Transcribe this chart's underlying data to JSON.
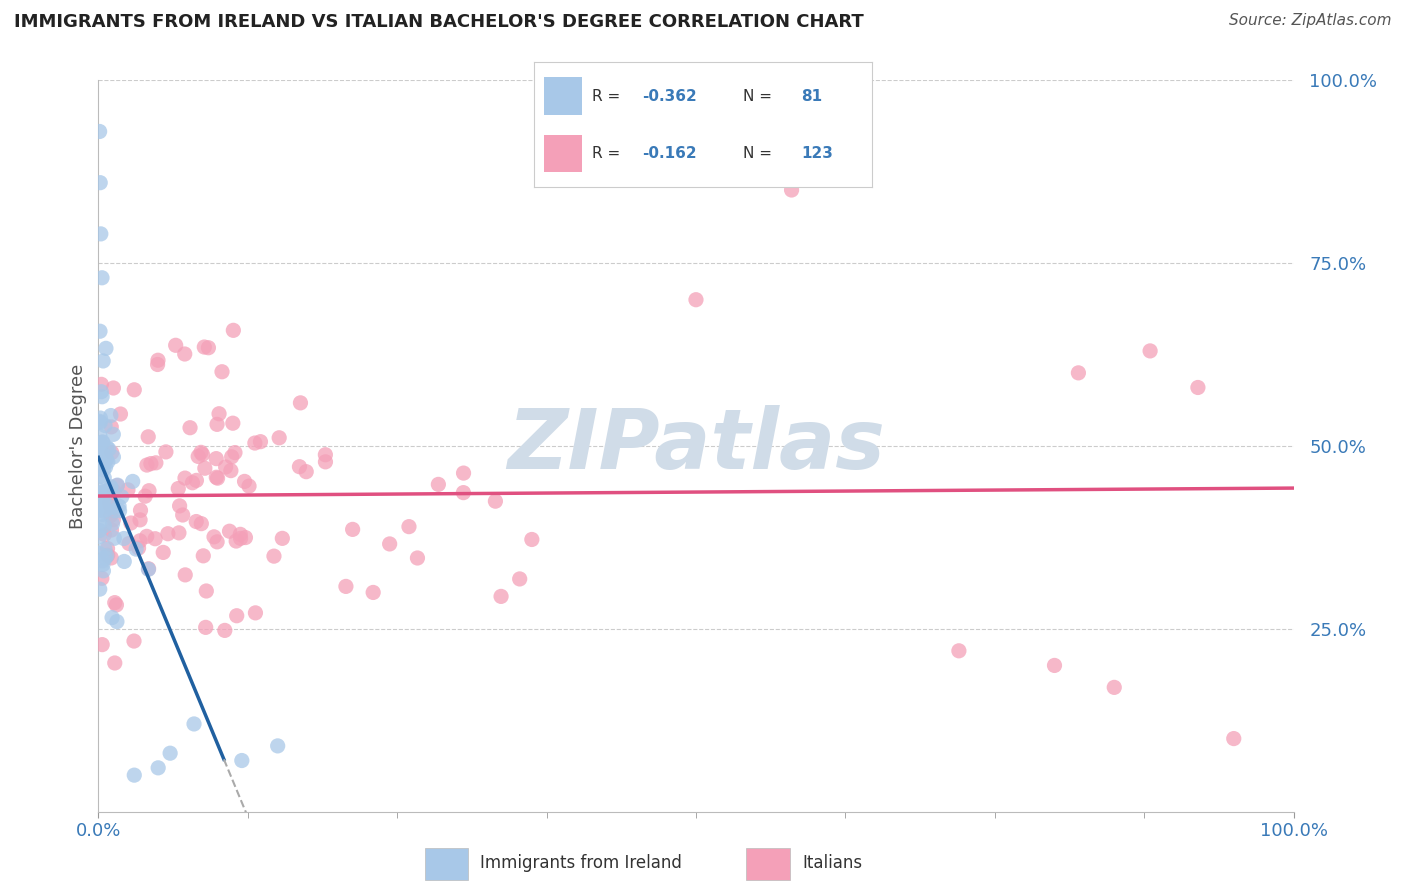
{
  "title": "IMMIGRANTS FROM IRELAND VS ITALIAN BACHELOR'S DEGREE CORRELATION CHART",
  "source": "Source: ZipAtlas.com",
  "ylabel": "Bachelor's Degree",
  "legend1_R": "-0.362",
  "legend1_N": "81",
  "legend2_R": "-0.162",
  "legend2_N": "123",
  "legend1_label": "Immigrants from Ireland",
  "legend2_label": "Italians",
  "blue_dot_color": "#a8c8e8",
  "pink_dot_color": "#f4a0b8",
  "blue_line_color": "#2060a0",
  "pink_line_color": "#e05080",
  "dash_color": "#aaaaaa",
  "watermark_color": "#d0dce8",
  "background_color": "#ffffff",
  "grid_color": "#cccccc",
  "text_color_blue": "#3a7ab8",
  "text_color_dark": "#333333",
  "title_color": "#222222",
  "source_color": "#555555"
}
